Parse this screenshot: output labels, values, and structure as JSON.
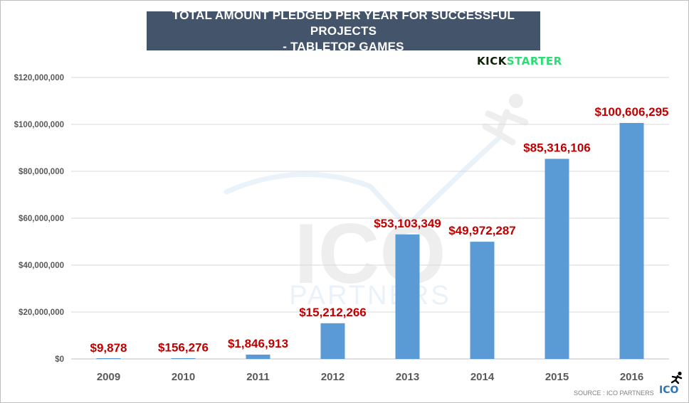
{
  "title": {
    "line1": "TOTAL AMOUNT PLEDGED PER YEAR FOR SUCCESSFUL PROJECTS",
    "line2": "- TABLETOP GAMES"
  },
  "brand": {
    "part1": "KICK",
    "part2": "STARTER"
  },
  "watermark": {
    "main": "ICO",
    "sub": "PARTNERS"
  },
  "source": "SOURCE : ICO PARTNERS",
  "logo_text": "ICO",
  "colors": {
    "bar": "#5b9bd5",
    "label": "#c00000",
    "title_bg": "#44546a",
    "grid": "#d9d9d9"
  },
  "chart_data": {
    "type": "bar",
    "title": "TOTAL AMOUNT PLEDGED PER YEAR FOR SUCCESSFUL PROJECTS - TABLETOP GAMES",
    "xlabel": "",
    "ylabel": "",
    "categories": [
      "2009",
      "2010",
      "2011",
      "2012",
      "2013",
      "2014",
      "2015",
      "2016"
    ],
    "values": [
      9878,
      156276,
      1846913,
      15212266,
      53103349,
      49972287,
      85316106,
      100606295
    ],
    "data_labels": [
      "$9,878",
      "$156,276",
      "$1,846,913",
      "$15,212,266",
      "$53,103,349",
      "$49,972,287",
      "$85,316,106",
      "$100,606,295"
    ],
    "ylim": [
      0,
      120000000
    ],
    "yticks": [
      0,
      20000000,
      40000000,
      60000000,
      80000000,
      100000000,
      120000000
    ],
    "ytick_labels": [
      "$0",
      "$20,000,000",
      "$40,000,000",
      "$60,000,000",
      "$80,000,000",
      "$100,000,000",
      "$120,000,000"
    ],
    "grid": true,
    "legend": "none"
  }
}
